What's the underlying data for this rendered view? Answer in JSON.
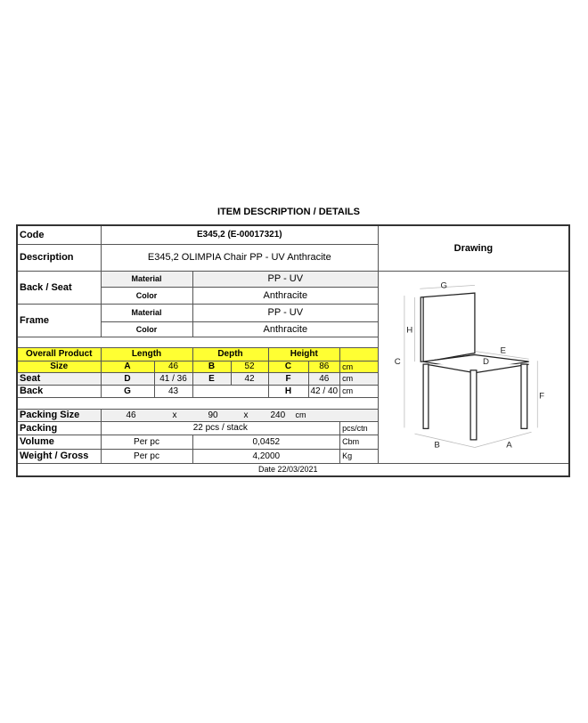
{
  "title": "ITEM DESCRIPTION / DETAILS",
  "code": {
    "label": "Code",
    "value": "E345,2 (E-00017321)"
  },
  "description": {
    "label": "Description",
    "value": "E345,2 OLIMPIA Chair PP - UV Anthracite"
  },
  "drawing": {
    "label": "Drawing",
    "letters": {
      "g": "G",
      "h": "H",
      "c": "C",
      "e": "E",
      "d": "D",
      "f": "F",
      "b": "B",
      "a": "A"
    }
  },
  "back_seat": {
    "label": "Back / Seat",
    "material_label": "Material",
    "material": "PP - UV",
    "color_label": "Color",
    "color": "Anthracite"
  },
  "frame": {
    "label": "Frame",
    "material_label": "Material",
    "material": "PP - UV",
    "color_label": "Color",
    "color": "Anthracite"
  },
  "dimensions": {
    "header": {
      "label1": "Overall Product",
      "label2": "Size",
      "length": "Length",
      "depth": "Depth",
      "height": "Height"
    },
    "size": {
      "l_key": "A",
      "l_val": "46",
      "d_key": "B",
      "d_val": "52",
      "h_key": "C",
      "h_val": "86",
      "unit": "cm"
    },
    "seat": {
      "label": "Seat",
      "l_key": "D",
      "l_val": "41 / 36",
      "d_key": "E",
      "d_val": "42",
      "h_key": "F",
      "h_val": "46",
      "unit": "cm"
    },
    "back": {
      "label": "Back",
      "l_key": "G",
      "l_val": "43",
      "h_key": "H",
      "h_val": "42 / 40",
      "unit": "cm"
    }
  },
  "packing_size": {
    "label": "Packing Size",
    "w": "46",
    "x1": "x",
    "d": "90",
    "x2": "x",
    "h": "240",
    "unit": "cm"
  },
  "packing": {
    "label": "Packing",
    "value": "22 pcs / stack",
    "unit": "pcs/ctn"
  },
  "volume": {
    "label": "Volume",
    "per": "Per pc",
    "value": "0,0452",
    "unit": "Cbm"
  },
  "weight": {
    "label": "Weight / Gross",
    "per": "Per pc",
    "value": "4,2000",
    "unit": "Kg"
  },
  "date": "Date 22/03/2021",
  "colors": {
    "highlight": "#ffff33",
    "border": "#333333"
  }
}
